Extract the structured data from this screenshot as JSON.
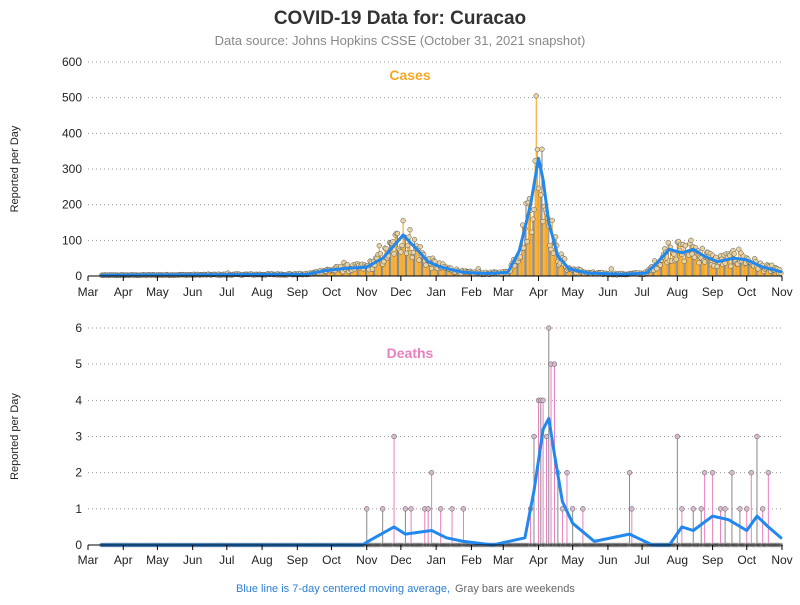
{
  "title": "COVID-19 Data for: Curacao",
  "subtitle": "Data source: Johns Hopkins CSSE (October 31, 2021 snapshot)",
  "footer": {
    "part1": "Blue line is 7-day centered moving average,",
    "part2": "Gray bars are weekends"
  },
  "colors": {
    "cases": "#f5a623",
    "deaths": "#e87fbf",
    "avg": "#2288ee",
    "weekend": "#888888",
    "footer_blue": "#2a7fd6",
    "footer_gray": "#666666"
  },
  "chart_data": [
    {
      "type": "bar",
      "panel_title": "Cases",
      "ylabel": "Reported per Day",
      "x_ticks": [
        "Mar",
        "Apr",
        "May",
        "Jun",
        "Jul",
        "Aug",
        "Sep",
        "Oct",
        "Nov",
        "Dec",
        "Jan",
        "Feb",
        "Mar",
        "Apr",
        "May",
        "Jun",
        "Jul",
        "Aug",
        "Sep",
        "Oct",
        "Nov"
      ],
      "x_range": [
        "2020-03-01",
        "2021-11-01"
      ],
      "ylim": [
        0,
        600
      ],
      "y_ticks": [
        0,
        100,
        200,
        300,
        400,
        500,
        600
      ],
      "daily_values_by_period": [
        {
          "from": "2020-03-13",
          "to": "2020-09-14",
          "avg": 3,
          "peak": 8
        },
        {
          "from": "2020-09-15",
          "to": "2020-10-31",
          "avg": 20,
          "peak": 38
        },
        {
          "from": "2020-11-01",
          "to": "2020-11-20",
          "avg": 45,
          "peak": 85
        },
        {
          "from": "2020-12-01",
          "to": "2020-12-05",
          "avg": 115,
          "peak": 155
        },
        {
          "from": "2021-01-01",
          "to": "2021-03-05",
          "avg": 8,
          "peak": 20
        },
        {
          "from": "2021-03-25",
          "to": "2021-04-03",
          "avg": 330,
          "peak": 505
        },
        {
          "from": "2021-04-20",
          "to": "2021-07-05",
          "avg": 6,
          "peak": 20
        },
        {
          "from": "2021-07-20",
          "to": "2021-08-10",
          "avg": 75,
          "peak": 95
        },
        {
          "from": "2021-09-01",
          "to": "2021-10-10",
          "avg": 50,
          "peak": 75
        },
        {
          "from": "2021-10-11",
          "to": "2021-10-31",
          "avg": 15,
          "peak": 30
        }
      ],
      "moving_average": [
        {
          "date": "2020-03-13",
          "value": 2
        },
        {
          "date": "2020-09-10",
          "value": 5
        },
        {
          "date": "2020-09-25",
          "value": 15
        },
        {
          "date": "2020-10-15",
          "value": 22
        },
        {
          "date": "2020-11-01",
          "value": 25
        },
        {
          "date": "2020-11-15",
          "value": 50
        },
        {
          "date": "2020-11-25",
          "value": 85
        },
        {
          "date": "2020-12-03",
          "value": 115
        },
        {
          "date": "2020-12-15",
          "value": 75
        },
        {
          "date": "2020-12-25",
          "value": 40
        },
        {
          "date": "2021-01-05",
          "value": 25
        },
        {
          "date": "2021-01-25",
          "value": 10
        },
        {
          "date": "2021-02-15",
          "value": 7
        },
        {
          "date": "2021-03-05",
          "value": 10
        },
        {
          "date": "2021-03-15",
          "value": 70
        },
        {
          "date": "2021-03-25",
          "value": 200
        },
        {
          "date": "2021-04-01",
          "value": 330
        },
        {
          "date": "2021-04-05",
          "value": 270
        },
        {
          "date": "2021-04-10",
          "value": 150
        },
        {
          "date": "2021-04-18",
          "value": 55
        },
        {
          "date": "2021-04-28",
          "value": 20
        },
        {
          "date": "2021-05-15",
          "value": 8
        },
        {
          "date": "2021-06-15",
          "value": 5
        },
        {
          "date": "2021-07-05",
          "value": 8
        },
        {
          "date": "2021-07-15",
          "value": 40
        },
        {
          "date": "2021-07-25",
          "value": 75
        },
        {
          "date": "2021-08-05",
          "value": 65
        },
        {
          "date": "2021-08-15",
          "value": 75
        },
        {
          "date": "2021-08-25",
          "value": 55
        },
        {
          "date": "2021-09-05",
          "value": 40
        },
        {
          "date": "2021-09-20",
          "value": 50
        },
        {
          "date": "2021-10-01",
          "value": 45
        },
        {
          "date": "2021-10-15",
          "value": 25
        },
        {
          "date": "2021-10-31",
          "value": 12
        }
      ]
    },
    {
      "type": "bar",
      "panel_title": "Deaths",
      "ylabel": "Reported per Day",
      "x_ticks": [
        "Mar",
        "Apr",
        "May",
        "Jun",
        "Jul",
        "Aug",
        "Sep",
        "Oct",
        "Nov",
        "Dec",
        "Jan",
        "Feb",
        "Mar",
        "Apr",
        "May",
        "Jun",
        "Jul",
        "Aug",
        "Sep",
        "Oct",
        "Nov"
      ],
      "x_range": [
        "2020-03-01",
        "2021-11-01"
      ],
      "ylim": [
        0,
        6
      ],
      "y_ticks": [
        0,
        1,
        2,
        3,
        4,
        5,
        6
      ],
      "nonzero_days": [
        {
          "date": "2020-11-01",
          "value": 1
        },
        {
          "date": "2020-11-15",
          "value": 1
        },
        {
          "date": "2020-11-25",
          "value": 3
        },
        {
          "date": "2020-12-05",
          "value": 1
        },
        {
          "date": "2020-12-10",
          "value": 1
        },
        {
          "date": "2020-12-22",
          "value": 1
        },
        {
          "date": "2020-12-25",
          "value": 1
        },
        {
          "date": "2020-12-28",
          "value": 2
        },
        {
          "date": "2021-01-05",
          "value": 1
        },
        {
          "date": "2021-01-15",
          "value": 1
        },
        {
          "date": "2021-01-25",
          "value": 1
        },
        {
          "date": "2021-03-25",
          "value": 1
        },
        {
          "date": "2021-03-28",
          "value": 3
        },
        {
          "date": "2021-04-01",
          "value": 4
        },
        {
          "date": "2021-04-03",
          "value": 4
        },
        {
          "date": "2021-04-05",
          "value": 4
        },
        {
          "date": "2021-04-08",
          "value": 3
        },
        {
          "date": "2021-04-10",
          "value": 6
        },
        {
          "date": "2021-04-12",
          "value": 5
        },
        {
          "date": "2021-04-15",
          "value": 5
        },
        {
          "date": "2021-04-18",
          "value": 2
        },
        {
          "date": "2021-04-22",
          "value": 1
        },
        {
          "date": "2021-04-26",
          "value": 2
        },
        {
          "date": "2021-05-01",
          "value": 1
        },
        {
          "date": "2021-05-10",
          "value": 1
        },
        {
          "date": "2021-06-20",
          "value": 2
        },
        {
          "date": "2021-06-22",
          "value": 1
        },
        {
          "date": "2021-08-01",
          "value": 3
        },
        {
          "date": "2021-08-05",
          "value": 1
        },
        {
          "date": "2021-08-15",
          "value": 1
        },
        {
          "date": "2021-08-22",
          "value": 1
        },
        {
          "date": "2021-08-25",
          "value": 2
        },
        {
          "date": "2021-09-01",
          "value": 2
        },
        {
          "date": "2021-09-08",
          "value": 1
        },
        {
          "date": "2021-09-12",
          "value": 1
        },
        {
          "date": "2021-09-18",
          "value": 2
        },
        {
          "date": "2021-09-25",
          "value": 1
        },
        {
          "date": "2021-10-01",
          "value": 1
        },
        {
          "date": "2021-10-05",
          "value": 2
        },
        {
          "date": "2021-10-10",
          "value": 3
        },
        {
          "date": "2021-10-15",
          "value": 1
        },
        {
          "date": "2021-10-20",
          "value": 2
        }
      ],
      "moving_average": [
        {
          "date": "2020-03-13",
          "value": 0
        },
        {
          "date": "2020-10-28",
          "value": 0
        },
        {
          "date": "2020-11-05",
          "value": 0.15
        },
        {
          "date": "2020-11-25",
          "value": 0.5
        },
        {
          "date": "2020-12-05",
          "value": 0.3
        },
        {
          "date": "2020-12-28",
          "value": 0.4
        },
        {
          "date": "2021-01-10",
          "value": 0.2
        },
        {
          "date": "2021-01-25",
          "value": 0.1
        },
        {
          "date": "2021-02-20",
          "value": 0
        },
        {
          "date": "2021-03-20",
          "value": 0.2
        },
        {
          "date": "2021-03-28",
          "value": 1.5
        },
        {
          "date": "2021-04-05",
          "value": 3.2
        },
        {
          "date": "2021-04-10",
          "value": 3.5
        },
        {
          "date": "2021-04-15",
          "value": 2.5
        },
        {
          "date": "2021-04-22",
          "value": 1.2
        },
        {
          "date": "2021-05-01",
          "value": 0.6
        },
        {
          "date": "2021-05-20",
          "value": 0.1
        },
        {
          "date": "2021-06-20",
          "value": 0.3
        },
        {
          "date": "2021-07-10",
          "value": 0
        },
        {
          "date": "2021-07-25",
          "value": 0
        },
        {
          "date": "2021-08-05",
          "value": 0.5
        },
        {
          "date": "2021-08-15",
          "value": 0.4
        },
        {
          "date": "2021-09-01",
          "value": 0.8
        },
        {
          "date": "2021-09-15",
          "value": 0.7
        },
        {
          "date": "2021-10-01",
          "value": 0.4
        },
        {
          "date": "2021-10-10",
          "value": 0.8
        },
        {
          "date": "2021-10-20",
          "value": 0.5
        },
        {
          "date": "2021-10-31",
          "value": 0.2
        }
      ]
    }
  ]
}
